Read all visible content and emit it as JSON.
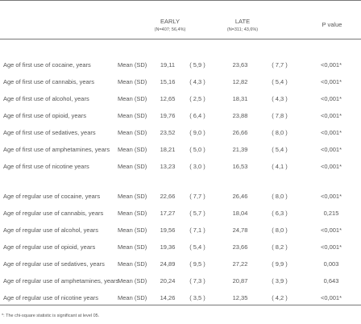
{
  "header": {
    "early": "EARLY",
    "early_n": "(N=407; 56,4%)",
    "late": "LATE",
    "late_n": "(N=311; 43,6%)",
    "p_value": "P value"
  },
  "first_use": [
    [
      "Age of first use of cocaine, years",
      "Mean (SD)",
      "19,11",
      "( 5,9 )",
      "23,63",
      "( 7,7 )",
      "<0,001*"
    ],
    [
      "Age of first use of cannabis, years",
      "Mean (SD)",
      "15,16",
      "( 4,3 )",
      "12,82",
      "( 5,4 )",
      "<0,001*"
    ],
    [
      "Age of first use of alcohol, years",
      "Mean (SD)",
      "12,65",
      "( 2,5 )",
      "18,31",
      "( 4,3 )",
      "<0,001*"
    ],
    [
      "Age of first use of opioid, years",
      "Mean (SD)",
      "19,76",
      "( 6,4 )",
      "23,88",
      "( 7,8 )",
      "<0,001*"
    ],
    [
      "Age of first use of sedatives, years",
      "Mean (SD)",
      "23,52",
      "( 9,0 )",
      "26,66",
      "( 8,0 )",
      "<0,001*"
    ],
    [
      "Age of first use of amphetamines, years",
      "Mean (SD)",
      "18,21",
      "( 5,0 )",
      "21,39",
      "( 5,4 )",
      "<0,001*"
    ],
    [
      "Age of first use of nicotine years",
      "Mean (SD)",
      "13,23",
      "( 3,0 )",
      "16,53",
      "( 4,1 )",
      "<0,001*"
    ]
  ],
  "regular_use": [
    [
      "Age of regular use of cocaine, years",
      "Mean (SD)",
      "22,66",
      "( 7,7 )",
      "26,46",
      "( 8,0 )",
      "<0,001*"
    ],
    [
      "Age of regular use of cannabis, years",
      "Mean (SD)",
      "17,27",
      "( 5,7 )",
      "18,04",
      "( 6,3 )",
      "0,215"
    ],
    [
      "Age of regular use of alcohol, years",
      "Mean (SD)",
      "19,56",
      "( 7,1 )",
      "24,78",
      "( 8,0 )",
      "<0,001*"
    ],
    [
      "Age of regular use of opioid, years",
      "Mean (SD)",
      "19,36",
      "( 5,4 )",
      "23,66",
      "( 8,2 )",
      "<0,001*"
    ],
    [
      "Age of regular use of sedatives, years",
      "Mean (SD)",
      "24,89",
      "( 9,5 )",
      "27,22",
      "( 9,9 )",
      "0,003"
    ],
    [
      "Age of regular use of amphetamines, years",
      "Mean (SD)",
      "20,24",
      "( 7,3 )",
      "20,87",
      "( 3,9 )",
      "0,643"
    ],
    [
      "Age of regular use of nicotine years",
      "Mean (SD)",
      "14,26",
      "( 3,5 )",
      "12,35",
      "( 4,2 )",
      "<0,001*"
    ]
  ],
  "footnote": "*: The chi-square statistic is significant at level 05."
}
